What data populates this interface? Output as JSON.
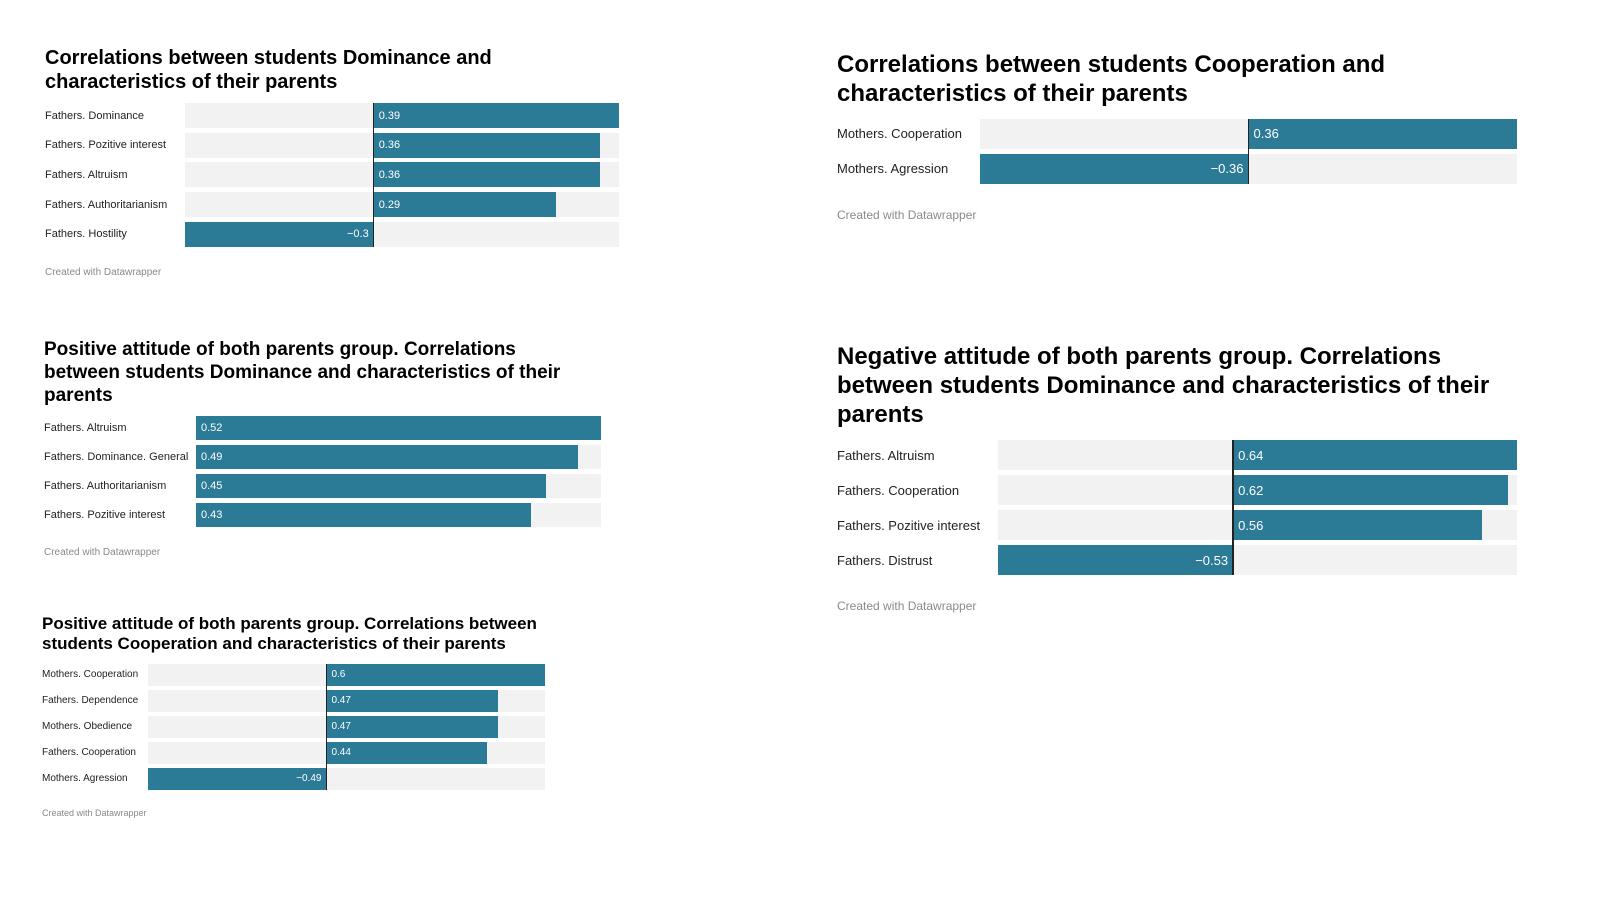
{
  "credit": "Created with Datawrapper",
  "colors": {
    "bar": "#2b7a96",
    "track": "#f2f2f2"
  },
  "chart_data": [
    {
      "type": "bar",
      "title": "Correlations between students Dominance and characteristics of their parents",
      "categories": [
        "Fathers. Dominance",
        "Fathers. Pozitive interest",
        "Fathers. Altruism",
        "Fathers. Authoritarianism",
        "Fathers. Hostility"
      ],
      "values": [
        0.39,
        0.36,
        0.36,
        0.29,
        -0.3
      ],
      "value_labels": [
        "0.39",
        "0.36",
        "0.36",
        "0.29",
        "−0.3"
      ],
      "xlim": [
        -0.3,
        0.39
      ]
    },
    {
      "type": "bar",
      "title": "Correlations between students Cooperation and characteristics of their parents",
      "categories": [
        "Mothers. Cooperation",
        "Mothers. Agression"
      ],
      "values": [
        0.36,
        -0.36
      ],
      "value_labels": [
        "0.36",
        "−0.36"
      ],
      "xlim": [
        -0.36,
        0.36
      ]
    },
    {
      "type": "bar",
      "title": "Positive attitude of both parents group. Correlations between students Dominance and characteristics of their parents",
      "categories": [
        "Fathers. Altruism",
        "Fathers. Dominance. General",
        "Fathers. Authoritarianism",
        "Fathers. Pozitive interest"
      ],
      "values": [
        0.52,
        0.49,
        0.45,
        0.43
      ],
      "value_labels": [
        "0.52",
        "0.49",
        "0.45",
        "0.43"
      ],
      "xlim": [
        0,
        0.52
      ]
    },
    {
      "type": "bar",
      "title": "Negative attitude of both parents group. Correlations between students Dominance and characteristics of their parents",
      "categories": [
        "Fathers. Altruism",
        "Fathers. Cooperation",
        "Fathers. Pozitive interest",
        "Fathers. Distrust"
      ],
      "values": [
        0.64,
        0.62,
        0.56,
        -0.53
      ],
      "value_labels": [
        "0.64",
        "0.62",
        "0.56",
        "−0.53"
      ],
      "xlim": [
        -0.53,
        0.64
      ]
    },
    {
      "type": "bar",
      "title": "Positive attitude of both parents group. Correlations between students Cooperation and characteristics of their parents",
      "categories": [
        "Mothers. Cooperation",
        "Fathers. Dependence",
        "Mothers. Obedience",
        "Fathers. Cooperation",
        "Mothers. Agression"
      ],
      "values": [
        0.6,
        0.47,
        0.47,
        0.44,
        -0.49
      ],
      "value_labels": [
        "0.6",
        "0.47",
        "0.47",
        "0.44",
        "−0.49"
      ],
      "xlim": [
        -0.49,
        0.6
      ]
    }
  ]
}
